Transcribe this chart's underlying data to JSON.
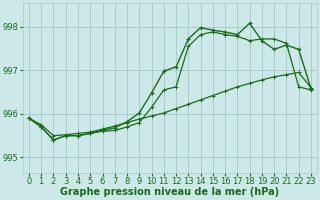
{
  "x": [
    0,
    1,
    2,
    3,
    4,
    5,
    6,
    7,
    8,
    9,
    10,
    11,
    12,
    13,
    14,
    15,
    16,
    17,
    18,
    19,
    20,
    21,
    22,
    23
  ],
  "line1": [
    995.9,
    995.75,
    995.5,
    995.52,
    995.55,
    995.58,
    995.65,
    995.72,
    995.8,
    995.88,
    995.95,
    996.02,
    996.12,
    996.22,
    996.32,
    996.42,
    996.52,
    996.62,
    996.7,
    996.78,
    996.85,
    996.9,
    996.95,
    996.6
  ],
  "line2": [
    995.9,
    995.7,
    995.4,
    995.5,
    995.5,
    995.55,
    995.6,
    995.62,
    995.7,
    995.8,
    996.15,
    996.55,
    996.62,
    997.55,
    997.82,
    997.88,
    997.82,
    997.78,
    997.68,
    997.72,
    997.72,
    997.62,
    996.62,
    996.55
  ],
  "line3": [
    995.9,
    995.7,
    995.4,
    995.5,
    995.5,
    995.55,
    995.62,
    995.68,
    995.82,
    996.02,
    996.48,
    996.98,
    997.08,
    997.72,
    997.98,
    997.92,
    997.88,
    997.82,
    998.08,
    997.68,
    997.48,
    997.58,
    997.48,
    996.58
  ],
  "bg_color": "#cce8e8",
  "grid_color": "#aacccc",
  "line_color": "#1a6b1a",
  "ylabel_ticks": [
    995,
    996,
    997,
    998
  ],
  "ylim": [
    994.65,
    998.55
  ],
  "xlim": [
    -0.5,
    23.5
  ],
  "xlabel": "Graphe pression niveau de la mer (hPa)",
  "xlabel_fontsize": 7,
  "tick_fontsize": 6
}
